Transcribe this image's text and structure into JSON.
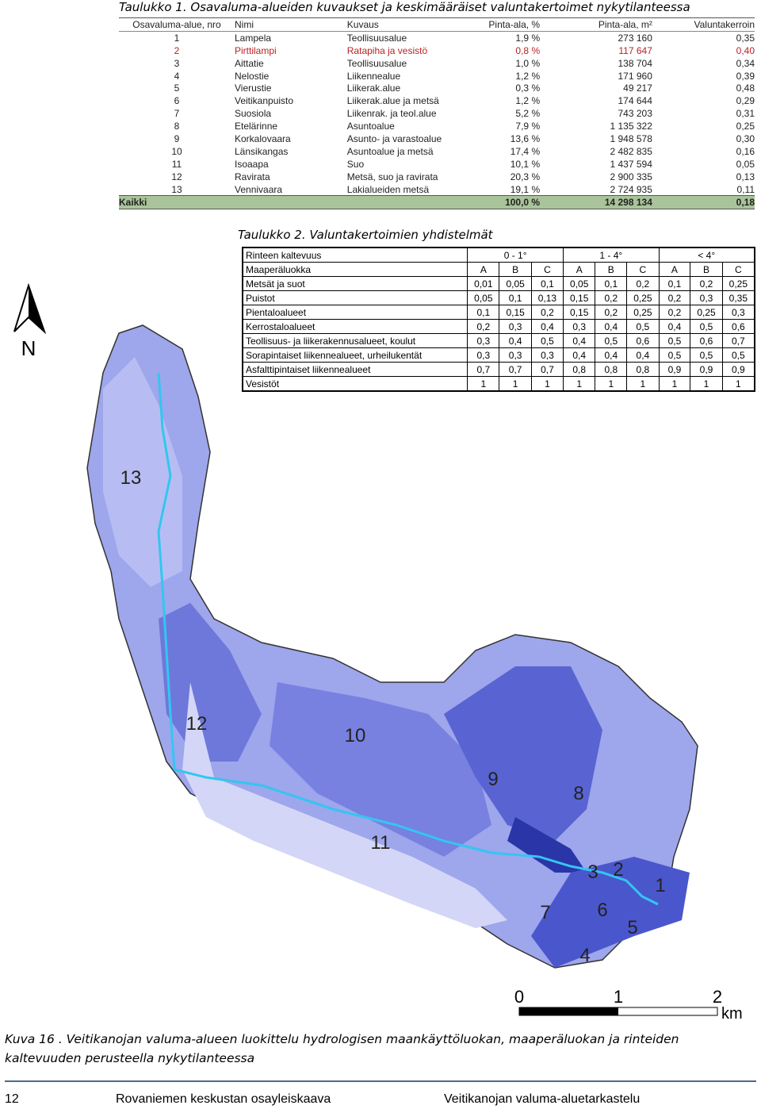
{
  "table1": {
    "title": "Taulukko 1. Osavaluma-alueiden kuvaukset ja keskimääräiset valuntakertoimet nykytilanteessa",
    "header": [
      "Osavaluma-alue, nro",
      "Nimi",
      "Kuvaus",
      "Pinta-ala, %",
      "Pinta-ala, m²",
      "Valuntakerroin"
    ],
    "rows": [
      [
        "1",
        "Lampela",
        "Teollisuusalue",
        "1,9 %",
        "273 160",
        "0,35"
      ],
      [
        "2",
        "Pirttilampi",
        "Ratapiha ja vesistö",
        "0,8 %",
        "117 647",
        "0,40"
      ],
      [
        "3",
        "Aittatie",
        "Teollisuusalue",
        "1,0 %",
        "138 704",
        "0,34"
      ],
      [
        "4",
        "Nelostie",
        "Liikennealue",
        "1,2 %",
        "171 960",
        "0,39"
      ],
      [
        "5",
        "Vierustie",
        "Liikerak.alue",
        "0,3 %",
        "49 217",
        "0,48"
      ],
      [
        "6",
        "Veitikanpuisto",
        "Liikerak.alue ja metsä",
        "1,2 %",
        "174 644",
        "0,29"
      ],
      [
        "7",
        "Suosiola",
        "Liikenrak. ja teol.alue",
        "5,2 %",
        "743 203",
        "0,31"
      ],
      [
        "8",
        "Etelärinne",
        "Asuntoalue",
        "7,9 %",
        "1 135 322",
        "0,25"
      ],
      [
        "9",
        "Korkalovaara",
        "Asunto- ja varastoalue",
        "13,6 %",
        "1 948 578",
        "0,30"
      ],
      [
        "10",
        "Länsikangas",
        "Asuntoalue ja metsä",
        "17,4 %",
        "2 482 835",
        "0,16"
      ],
      [
        "11",
        "Isoaapa",
        "Suo",
        "10,1 %",
        "1 437 594",
        "0,05"
      ],
      [
        "12",
        "Ravirata",
        "Metsä, suo ja ravirata",
        "20,3 %",
        "2 900 335",
        "0,13"
      ],
      [
        "13",
        "Vennivaara",
        "Lakialueiden metsä",
        "19,1 %",
        "2 724 935",
        "0,11"
      ]
    ],
    "total": [
      "Kaikki",
      "100,0 %",
      "14 298 134",
      "0,18"
    ]
  },
  "table2": {
    "title": "Taulukko 2. Valuntakertoimien yhdistelmät",
    "slope_label": "Rinteen kaltevuus",
    "slopes": [
      "0 - 1°",
      "1 - 4°",
      "< 4°"
    ],
    "soil_label": "Maaperäluokka",
    "soil_classes": [
      "A",
      "B",
      "C",
      "A",
      "B",
      "C",
      "A",
      "B",
      "C"
    ],
    "rows": [
      {
        "label": "Metsät ja suot",
        "values": [
          "0,01",
          "0,05",
          "0,1",
          "0,05",
          "0,1",
          "0,2",
          "0,1",
          "0,2",
          "0,25"
        ]
      },
      {
        "label": "Puistot",
        "values": [
          "0,05",
          "0,1",
          "0,13",
          "0,15",
          "0,2",
          "0,25",
          "0,2",
          "0,3",
          "0,35"
        ]
      },
      {
        "label": "Pientaloalueet",
        "values": [
          "0,1",
          "0,15",
          "0,2",
          "0,15",
          "0,2",
          "0,25",
          "0,2",
          "0,25",
          "0,3"
        ]
      },
      {
        "label": "Kerrostaloalueet",
        "values": [
          "0,2",
          "0,3",
          "0,4",
          "0,3",
          "0,4",
          "0,5",
          "0,4",
          "0,5",
          "0,6"
        ]
      },
      {
        "label": "Teollisuus- ja liikerakennusalueet, koulut",
        "values": [
          "0,3",
          "0,4",
          "0,5",
          "0,4",
          "0,5",
          "0,6",
          "0,5",
          "0,6",
          "0,7"
        ]
      },
      {
        "label": "Sorapintaiset liikennealueet, urheilukentät",
        "values": [
          "0,3",
          "0,3",
          "0,3",
          "0,4",
          "0,4",
          "0,4",
          "0,5",
          "0,5",
          "0,5"
        ]
      },
      {
        "label": "Asfalttipintaiset liikennealueet",
        "values": [
          "0,7",
          "0,7",
          "0,7",
          "0,8",
          "0,8",
          "0,8",
          "0,9",
          "0,9",
          "0,9"
        ]
      },
      {
        "label": "Vesistöt",
        "values": [
          "1",
          "1",
          "1",
          "1",
          "1",
          "1",
          "1",
          "1",
          "1"
        ]
      }
    ]
  },
  "map": {
    "north": "N",
    "labels": [
      "13",
      "12",
      "10",
      "9",
      "8",
      "11",
      "3",
      "2",
      "1",
      "7",
      "6",
      "5",
      "4"
    ],
    "scale": [
      "0",
      "1",
      "2"
    ],
    "scale_unit": "km"
  },
  "caption": "Kuva 16 . Veitikanojan valuma-alueen luokittelu hydrologisen maankäyttöluokan, maaperäluokan ja rinteiden kaltevuuden perusteella nykytilanteessa",
  "footer": {
    "page": "12",
    "left": "Rovaniemen keskustan osayleiskaava",
    "right": "Veitikanojan valuma-aluetarkastelu"
  }
}
